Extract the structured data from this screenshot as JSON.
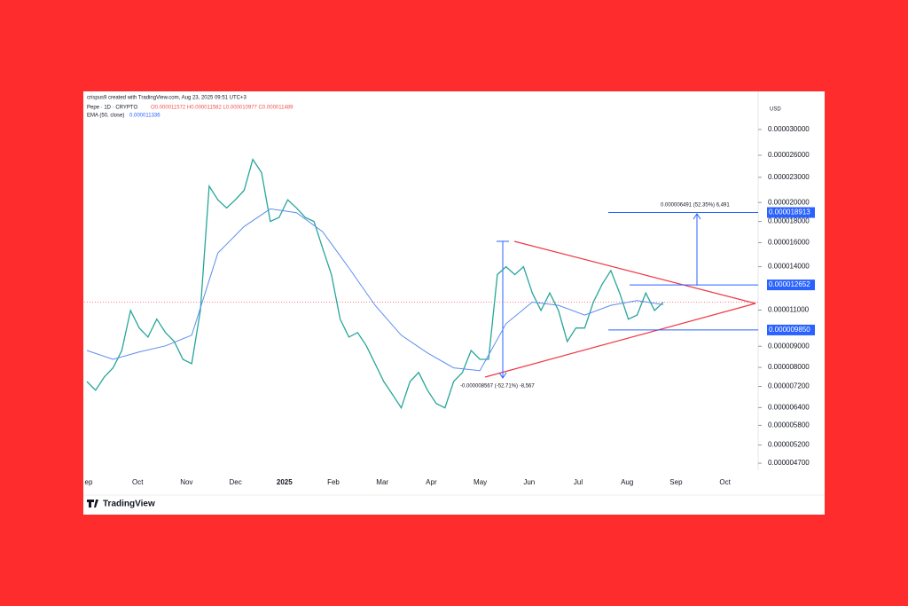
{
  "header": {
    "credit": "crispus9 created with TradingView.com, Aug 23, 2025 09:51 UTC+3",
    "symbol": "Pepe · 1D · CRYPTO",
    "ohlc": "O0.000011572 H0.000011582 L0.000010977 C0.000011489",
    "ema": "EMA (50, close)",
    "ema_value": "0.000011336",
    "currency": "USD",
    "brand": "TradingView"
  },
  "chart_data": {
    "type": "line",
    "log_scale": true,
    "x_labels": [
      "ep",
      "Oct",
      "Nov",
      "Dec",
      "2025",
      "Feb",
      "Mar",
      "Apr",
      "May",
      "Jun",
      "Jul",
      "Aug",
      "Sep",
      "Oct"
    ],
    "ylim": [
      4.52e-06,
      3.67e-05
    ],
    "yticks": [
      {
        "value": 3e-05,
        "label": "0.000030000"
      },
      {
        "value": 2.6e-05,
        "label": "0.000026000"
      },
      {
        "value": 2.3e-05,
        "label": "0.000023000"
      },
      {
        "value": 2e-05,
        "label": "0.000020000"
      },
      {
        "value": 1.8e-05,
        "label": "0.000018000"
      },
      {
        "value": 1.6e-05,
        "label": "0.000016000"
      },
      {
        "value": 1.4e-05,
        "label": "0.000014000"
      },
      {
        "value": 1.1e-05,
        "label": "0.000011000"
      },
      {
        "value": 9e-06,
        "label": "0.000009000"
      },
      {
        "value": 8e-06,
        "label": "0.000008000"
      },
      {
        "value": 7.2e-06,
        "label": "0.000007200"
      },
      {
        "value": 6.4e-06,
        "label": "0.000006400"
      },
      {
        "value": 5.8e-06,
        "label": "0.000005800"
      },
      {
        "value": 5.2e-06,
        "label": "0.000005200"
      },
      {
        "value": 4.7e-06,
        "label": "0.000004700"
      }
    ],
    "series": [
      {
        "name": "Pepe",
        "color": "#26a69a",
        "values": [
          7.4e-06,
          7.05e-06,
          7.59e-06,
          7.98e-06,
          8.79e-06,
          1.098e-05,
          9.96e-06,
          9.47e-06,
          1.046e-05,
          9.71e-06,
          9.24e-06,
          8.37e-06,
          8.17e-06,
          1.098e-05,
          2.19e-05,
          2.03e-05,
          1.94e-05,
          2.03e-05,
          2.14e-05,
          2.54e-05,
          2.36e-05,
          1.8e-05,
          1.84e-05,
          2.03e-05,
          1.94e-05,
          1.84e-05,
          1.8e-05,
          1.55e-05,
          1.34e-05,
          1.046e-05,
          9.47e-06,
          9.71e-06,
          9.02e-06,
          8.17e-06,
          7.4e-06,
          6.88e-06,
          6.39e-06,
          7.4e-06,
          7.78e-06,
          7.05e-06,
          6.55e-06,
          6.39e-06,
          7.4e-06,
          7.78e-06,
          8.79e-06,
          8.37e-06,
          8.37e-06,
          1.34e-05,
          1.4e-05,
          1.34e-05,
          1.4e-05,
          1.21e-05,
          1.098e-05,
          1.21e-05,
          1.098e-05,
          9.24e-06,
          9.96e-06,
          9.96e-06,
          1.15e-05,
          1.27e-05,
          1.37e-05,
          1.21e-05,
          1.046e-05,
          1.07e-05,
          1.21e-05,
          1.098e-05,
          1.1489e-05
        ]
      },
      {
        "name": "EMA (50, close)",
        "color": "#5b8def",
        "values": [
          8.79e-06,
          8.37e-06,
          8.72e-06,
          9.02e-06,
          9.57e-06,
          1.51e-05,
          1.75e-05,
          1.93e-05,
          1.89e-05,
          1.7e-05,
          1.39e-05,
          1.13e-05,
          9.57e-06,
          8.67e-06,
          7.98e-06,
          7.86e-06,
          1.02e-05,
          1.15e-05,
          1.13e-05,
          1.07e-05,
          1.13e-05,
          1.16e-05,
          1.1336e-05
        ]
      }
    ],
    "levels": [
      {
        "value": 1.8913e-05,
        "label": "0.000018913"
      },
      {
        "value": 1.2652e-05,
        "label": "0.000012652"
      },
      {
        "value": 9.85e-06,
        "label": "0.000009850"
      }
    ],
    "annotations": [
      "0.000006491 (52.35%) 6,491",
      "-0.000008567 (-52.71%) -8,567"
    ]
  }
}
